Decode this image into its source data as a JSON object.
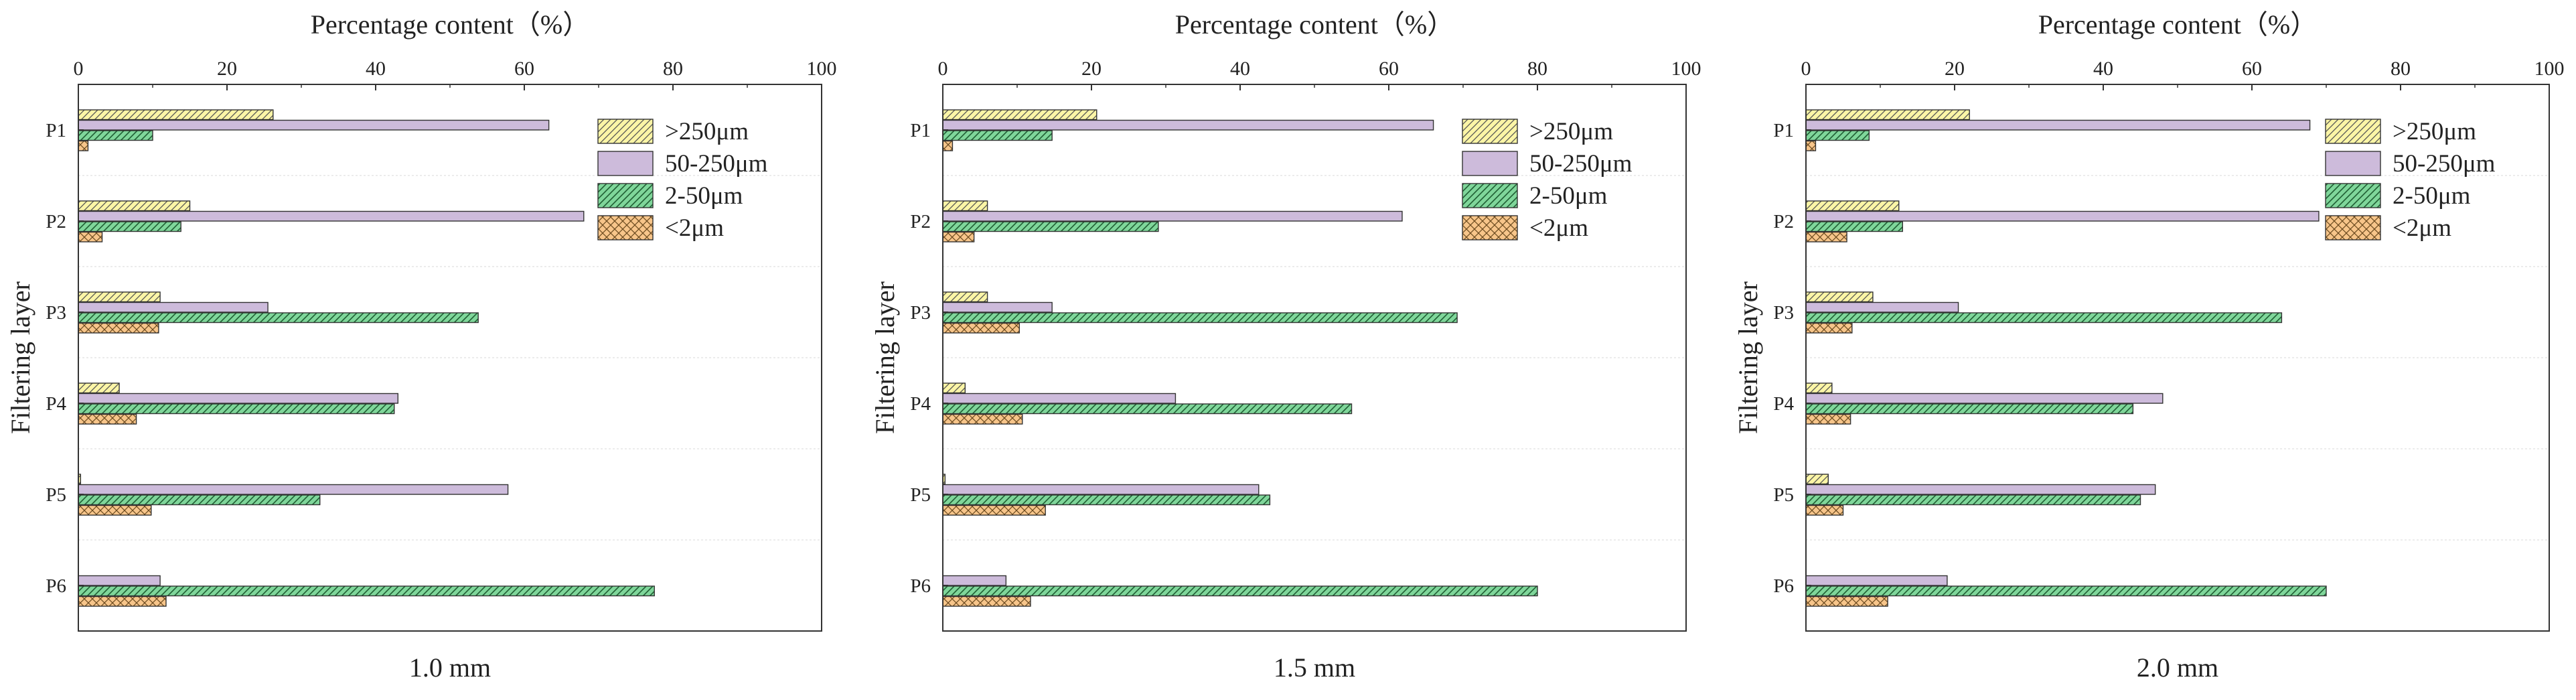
{
  "colors": {
    "gt250": "#fbf5a6",
    "r50_250": "#cdbbdb",
    "r2_50": "#7fd69a",
    "lt2": "#f7c58a",
    "stroke": "#333333",
    "grid": "#d8d8d8"
  },
  "legend": [
    ">250μm",
    "50-250μm",
    "2-50μm",
    "<2μm"
  ],
  "chart_data": [
    {
      "type": "bar",
      "orientation": "horizontal",
      "title": "1.0 mm",
      "xlabel": "Percentage content（%）",
      "ylabel": "Filtering layer",
      "xlim": [
        0,
        100
      ],
      "xticks": [
        "0",
        "20",
        "40",
        "60",
        "80",
        "100"
      ],
      "categories": [
        "P1",
        "P2",
        "P3",
        "P4",
        "P5",
        "P6"
      ],
      "legend_position": "top-right",
      "series": [
        {
          "name": ">250μm",
          "values": [
            26.2,
            15.0,
            11.0,
            5.5,
            0.3,
            0
          ]
        },
        {
          "name": "50-250μm",
          "values": [
            63.3,
            68.0,
            25.5,
            43.0,
            57.8,
            11.0
          ]
        },
        {
          "name": "2-50μm",
          "values": [
            10.0,
            13.8,
            53.8,
            42.5,
            32.5,
            77.5
          ]
        },
        {
          "name": "<2μm",
          "values": [
            1.3,
            3.2,
            10.8,
            7.8,
            9.8,
            11.8
          ]
        }
      ]
    },
    {
      "type": "bar",
      "orientation": "horizontal",
      "title": "1.5 mm",
      "xlabel": "Percentage content（%）",
      "ylabel": "Filtering layer",
      "xlim": [
        0,
        100
      ],
      "xticks": [
        "0",
        "20",
        "40",
        "60",
        "80",
        "100"
      ],
      "categories": [
        "P1",
        "P2",
        "P3",
        "P4",
        "P5",
        "P6"
      ],
      "legend_position": "top-right",
      "series": [
        {
          "name": ">250μm",
          "values": [
            20.7,
            6.0,
            6.0,
            3.0,
            0.3,
            0
          ]
        },
        {
          "name": "50-250μm",
          "values": [
            66.0,
            61.8,
            14.7,
            31.3,
            42.5,
            8.5
          ]
        },
        {
          "name": "2-50μm",
          "values": [
            14.7,
            29.0,
            69.2,
            55.0,
            44.0,
            80.0
          ]
        },
        {
          "name": "<2μm",
          "values": [
            1.3,
            4.2,
            10.3,
            10.7,
            13.8,
            11.8
          ]
        }
      ]
    },
    {
      "type": "bar",
      "orientation": "horizontal",
      "title": "2.0 mm",
      "xlabel": "Percentage content（%）",
      "ylabel": "Filtering layer",
      "xlim": [
        0,
        100
      ],
      "xticks": [
        "0",
        "20",
        "40",
        "60",
        "80",
        "100"
      ],
      "categories": [
        "P1",
        "P2",
        "P3",
        "P4",
        "P5",
        "P6"
      ],
      "legend_position": "top-right",
      "series": [
        {
          "name": ">250μm",
          "values": [
            22.0,
            12.5,
            9.0,
            3.5,
            3.0,
            0
          ]
        },
        {
          "name": "50-250μm",
          "values": [
            67.8,
            69.0,
            20.5,
            48.0,
            47.0,
            19.0
          ]
        },
        {
          "name": "2-50μm",
          "values": [
            8.5,
            13.0,
            64.0,
            44.0,
            45.0,
            70.0
          ]
        },
        {
          "name": "<2μm",
          "values": [
            1.3,
            5.5,
            6.2,
            6.0,
            5.0,
            11.0
          ]
        }
      ]
    }
  ]
}
